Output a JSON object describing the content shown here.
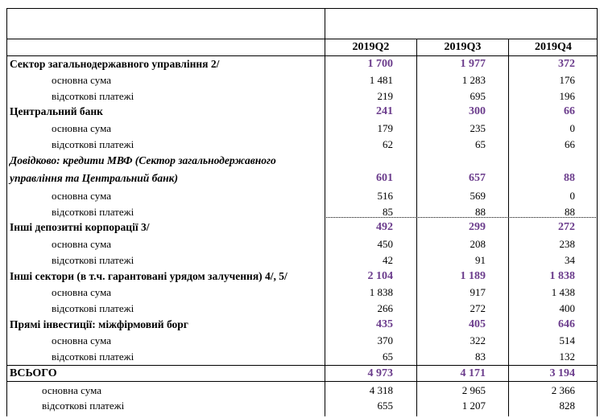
{
  "columns": [
    "2019Q2",
    "2019Q3",
    "2019Q4"
  ],
  "rows": [
    {
      "label": "Сектор загальнодержавного управління 2/",
      "kind": "bold",
      "values": [
        "1 700",
        "1 977",
        "372"
      ]
    },
    {
      "label": "основна сума",
      "kind": "sub",
      "values": [
        "1 481",
        "1 283",
        "176"
      ]
    },
    {
      "label": "відсоткові платежі",
      "kind": "sub",
      "values": [
        "219",
        "695",
        "196"
      ]
    },
    {
      "label": "Центральний банк",
      "kind": "bold",
      "values": [
        "241",
        "300",
        "66"
      ]
    },
    {
      "label": "основна сума",
      "kind": "sub",
      "values": [
        "179",
        "235",
        "0"
      ]
    },
    {
      "label": "відсоткові платежі",
      "kind": "sub",
      "values": [
        "62",
        "65",
        "66"
      ]
    },
    {
      "label": "Довідково: кредити МВФ (Сектор загальнодержавного",
      "kind": "bolditalic",
      "values": [
        "",
        "",
        ""
      ]
    },
    {
      "label": "управління та Центральний банк)",
      "kind": "bolditalic",
      "values": [
        "601",
        "657",
        "88"
      ]
    },
    {
      "label": "основна сума",
      "kind": "sub",
      "values": [
        "516",
        "569",
        "0"
      ]
    },
    {
      "label": "відсоткові платежі",
      "kind": "sub",
      "values": [
        "85",
        "88",
        "88"
      ]
    },
    {
      "label": "Інші депозитні корпорації 3/",
      "kind": "bold",
      "values": [
        "492",
        "299",
        "272"
      ]
    },
    {
      "label": "основна сума",
      "kind": "sub",
      "values": [
        "450",
        "208",
        "238"
      ]
    },
    {
      "label": "відсоткові платежі",
      "kind": "sub",
      "values": [
        "42",
        "91",
        "34"
      ]
    },
    {
      "label": "Інші сектори (в т.ч. гарантовані урядом залучення) 4/, 5/",
      "kind": "bold",
      "values": [
        "2 104",
        "1 189",
        "1 838"
      ]
    },
    {
      "label": "основна сума",
      "kind": "sub",
      "values": [
        "1 838",
        "917",
        "1 438"
      ]
    },
    {
      "label": "відсоткові платежі",
      "kind": "sub",
      "values": [
        "266",
        "272",
        "400"
      ]
    },
    {
      "label": "Прямі інвестиції: міжфірмовий борг",
      "kind": "bold",
      "values": [
        "435",
        "405",
        "646"
      ]
    },
    {
      "label": "основна сума",
      "kind": "sub",
      "values": [
        "370",
        "322",
        "514"
      ]
    },
    {
      "label": "відсоткові платежі",
      "kind": "sub",
      "values": [
        "65",
        "83",
        "132"
      ]
    },
    {
      "label": "ВСЬОГО",
      "kind": "total",
      "values": [
        "4 973",
        "4 171",
        "3 194"
      ]
    },
    {
      "label": "основна сума",
      "kind": "totalsub",
      "values": [
        "4 318",
        "2 965",
        "2 366"
      ]
    },
    {
      "label": "відсоткові платежі",
      "kind": "totalsub",
      "values": [
        "655",
        "1 207",
        "828"
      ]
    }
  ]
}
